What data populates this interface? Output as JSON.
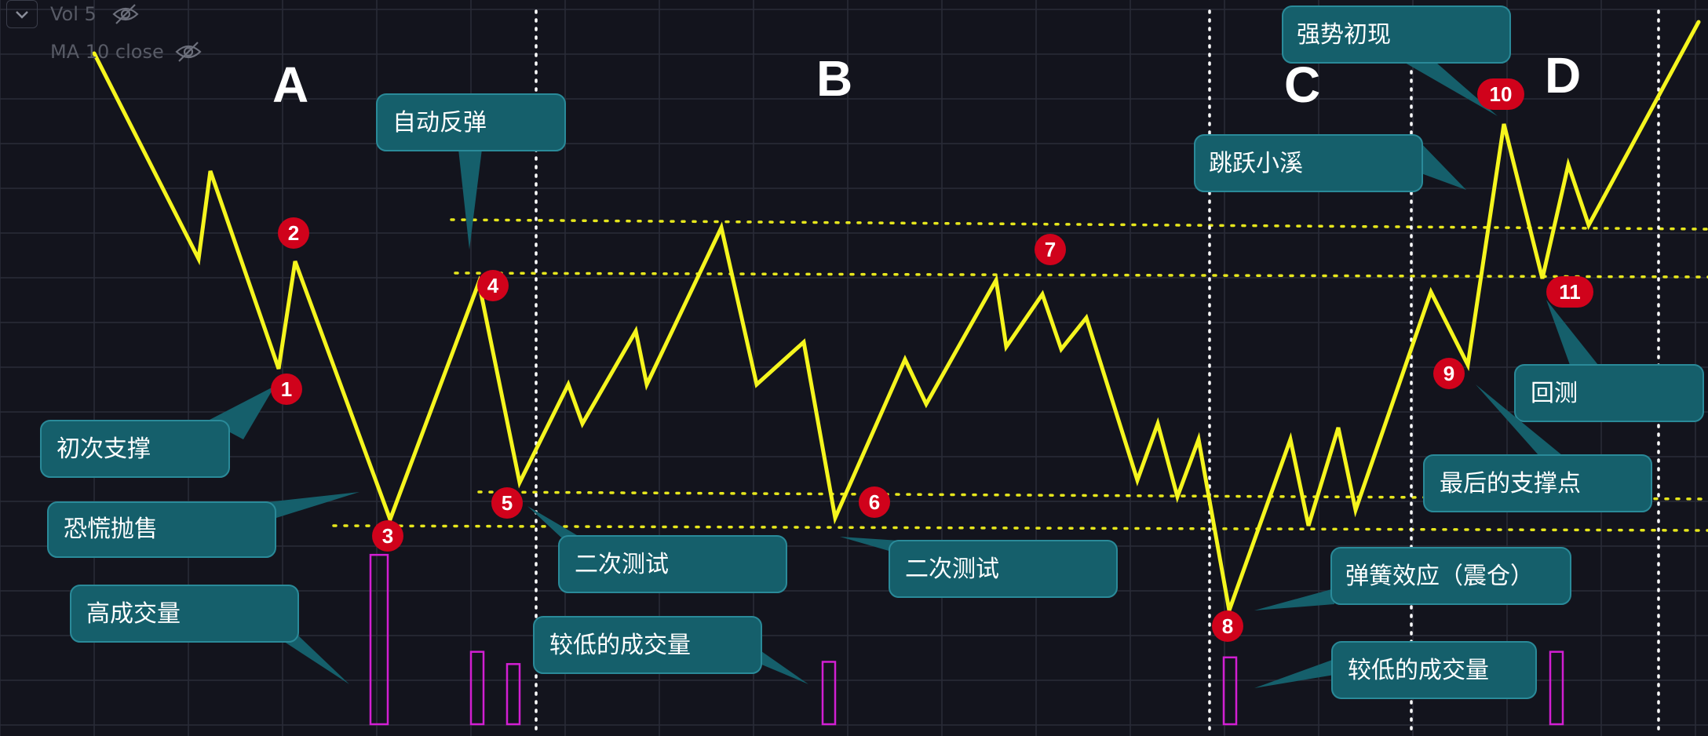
{
  "indicators": {
    "vol_label": "Vol 5",
    "ma_label": "MA 10 close"
  },
  "phases": [
    "A",
    "B",
    "C",
    "D"
  ],
  "annotations": {
    "callouts": [
      "初次支撑",
      "恐慌抛售",
      "高成交量",
      "自动反弹",
      "二次测试",
      "较低的成交量",
      "二次测试",
      "弹簧效应（震仓）",
      "较低的成交量",
      "强势初现",
      "跳跃小溪",
      "回测",
      "最后的支撑点"
    ],
    "markers": [
      "1",
      "2",
      "3",
      "4",
      "5",
      "6",
      "7",
      "8",
      "9",
      "10",
      "11"
    ]
  },
  "colors": {
    "background": "#13141d",
    "grid": "#2a2c38",
    "price_line": "#f5f51e",
    "level_line": "#e6e61c",
    "volume_bar": "#d21fd2",
    "callout_fill": "#155f6b",
    "callout_border": "#2a8a99",
    "marker": "#d0021b",
    "phase_text": "#ffffff",
    "divider": "#ffffff"
  },
  "chart_data": {
    "type": "line",
    "title": "",
    "xlabel": "",
    "ylabel": "",
    "grid": true,
    "x": [
      0,
      1,
      2,
      3,
      4,
      5,
      6,
      7,
      8,
      9,
      10,
      11,
      12,
      13,
      14,
      15,
      16,
      17,
      18,
      19,
      20,
      21,
      22,
      23,
      24,
      25,
      26,
      27,
      28,
      29,
      30,
      31,
      32,
      33,
      34,
      35,
      36,
      37,
      38,
      39,
      40,
      41,
      42,
      43,
      44,
      45,
      46,
      47,
      48,
      49
    ],
    "series": [
      {
        "values": [
          580,
          410,
          475,
          250,
          485,
          77,
          245,
          110,
          260,
          180,
          232,
          147,
          203,
          97,
          300,
          110,
          200,
          250,
          124,
          315,
          241,
          306,
          117,
          244,
          302,
          133,
          214,
          137,
          236,
          88,
          150,
          70,
          236,
          315,
          71,
          232,
          97,
          182,
          73,
          272,
          199,
          307,
          250,
          335,
          180,
          267,
          320,
          214,
          350,
          345
        ]
      }
    ],
    "volume": [
      {
        "x": 4.5,
        "value": 152
      },
      {
        "x": 6.2,
        "value": 65
      },
      {
        "x": 6.8,
        "value": 54
      },
      {
        "x": 12.6,
        "value": 56
      },
      {
        "x": 29.4,
        "value": 60
      },
      {
        "x": 42.0,
        "value": 65
      }
    ],
    "levels": [
      207,
      187,
      62,
      52
    ],
    "phase_dividers_x": [
      8.0,
      30.4,
      37.0,
      46.5
    ]
  }
}
